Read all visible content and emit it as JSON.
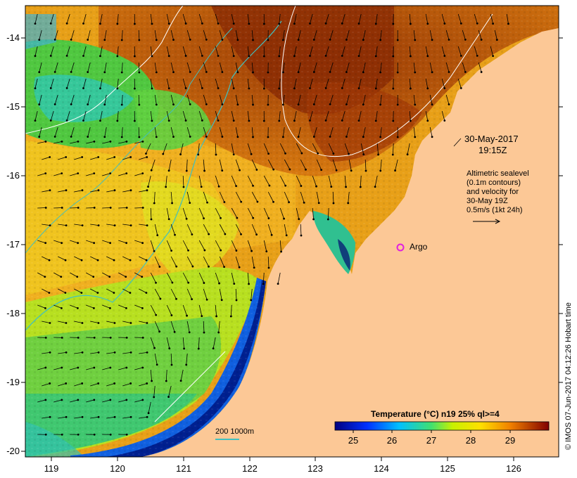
{
  "map": {
    "date": "30-May-2017",
    "time": "19:15Z",
    "info_lines": [
      "Altimetric sealevel",
      "(0.1m contours)",
      "and velocity for",
      "30-May 19Z",
      "0.5m/s (1kt 24h)"
    ],
    "marker_label": "Argo",
    "scale_label": "200  1000m",
    "credit": "© IMOS 07-Jun-2017 04:12:26 Hobart time",
    "x_ticks": [
      "119",
      "120",
      "121",
      "122",
      "123",
      "124",
      "125",
      "126"
    ],
    "y_ticks": [
      "-14",
      "-15",
      "-16",
      "-17",
      "-18",
      "-19",
      "-20"
    ],
    "legend": {
      "title": "Temperature (°C) n19 25% ql>=4",
      "ticks": [
        "25",
        "26",
        "27",
        "28",
        "29"
      ]
    },
    "colors": {
      "land": "#fcc896",
      "warm": "#c05a08",
      "cool": "#50c040",
      "argo": "#e020e0",
      "isobath": "#40c0c0"
    }
  }
}
